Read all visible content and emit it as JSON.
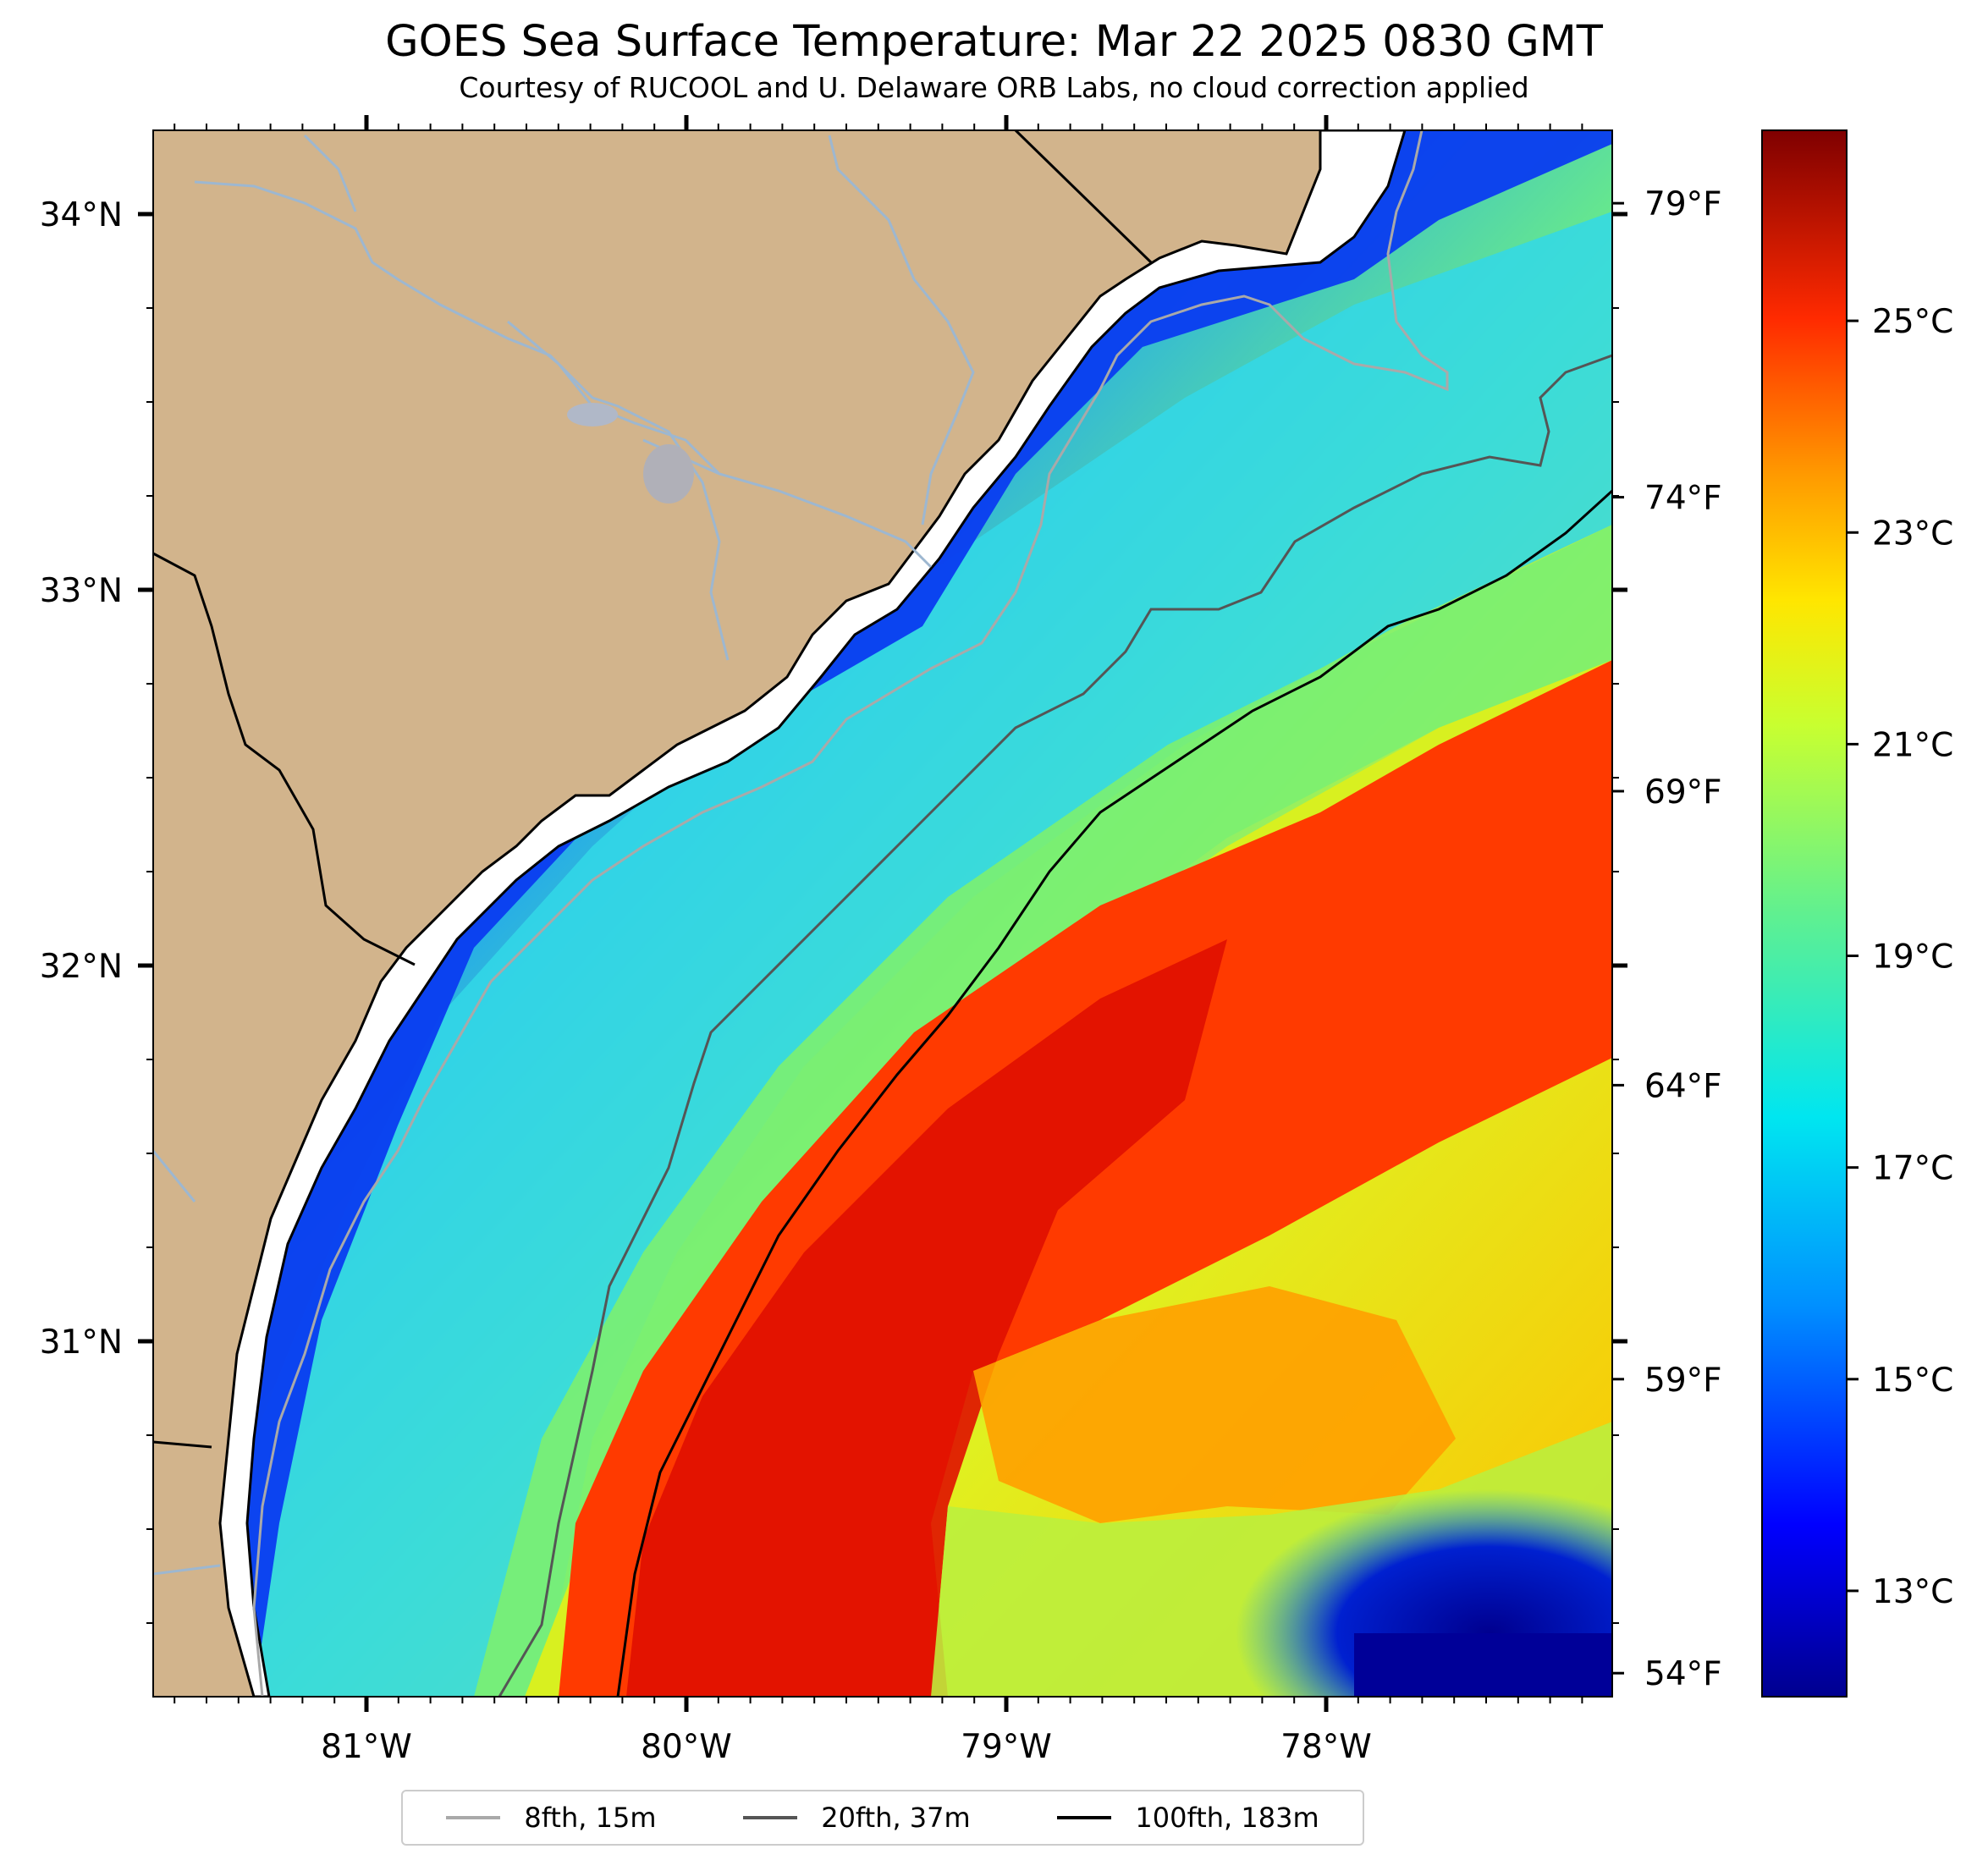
{
  "title": "GOES Sea Surface Temperature: Mar 22 2025 0830 GMT",
  "subtitle": "Courtesy of RUCOOL and U. Delaware ORB Labs, no cloud correction applied",
  "map": {
    "land_color": "#d2b48c",
    "river_color": "#9db7d0",
    "lat_ticks": [
      {
        "value": 34,
        "label": "34°N"
      },
      {
        "value": 33,
        "label": "33°N"
      },
      {
        "value": 32,
        "label": "32°N"
      },
      {
        "value": 31,
        "label": "31°N"
      }
    ],
    "lon_ticks": [
      {
        "value": -81,
        "label": "81°W"
      },
      {
        "value": -80,
        "label": "80°W"
      },
      {
        "value": -79,
        "label": "79°W"
      },
      {
        "value": -78,
        "label": "78°W"
      }
    ],
    "fahrenheit_ticks": [
      {
        "value": 79,
        "label": "79°F"
      },
      {
        "value": 74,
        "label": "74°F"
      },
      {
        "value": 69,
        "label": "69°F"
      },
      {
        "value": 64,
        "label": "64°F"
      },
      {
        "value": 59,
        "label": "59°F"
      },
      {
        "value": 54,
        "label": "54°F"
      }
    ]
  },
  "colorbar": {
    "min_c": 12.0,
    "max_c": 26.8,
    "ticks": [
      {
        "value": 25,
        "label": "25°C"
      },
      {
        "value": 23,
        "label": "23°C"
      },
      {
        "value": 21,
        "label": "21°C"
      },
      {
        "value": 19,
        "label": "19°C"
      },
      {
        "value": 17,
        "label": "17°C"
      },
      {
        "value": 15,
        "label": "15°C"
      },
      {
        "value": 13,
        "label": "13°C"
      }
    ]
  },
  "legend": {
    "items": [
      {
        "label": "8fth, 15m",
        "color": "#a9a9a9"
      },
      {
        "label": "20fth, 37m",
        "color": "#555555"
      },
      {
        "label": "100fth, 183m",
        "color": "#000000"
      }
    ]
  }
}
